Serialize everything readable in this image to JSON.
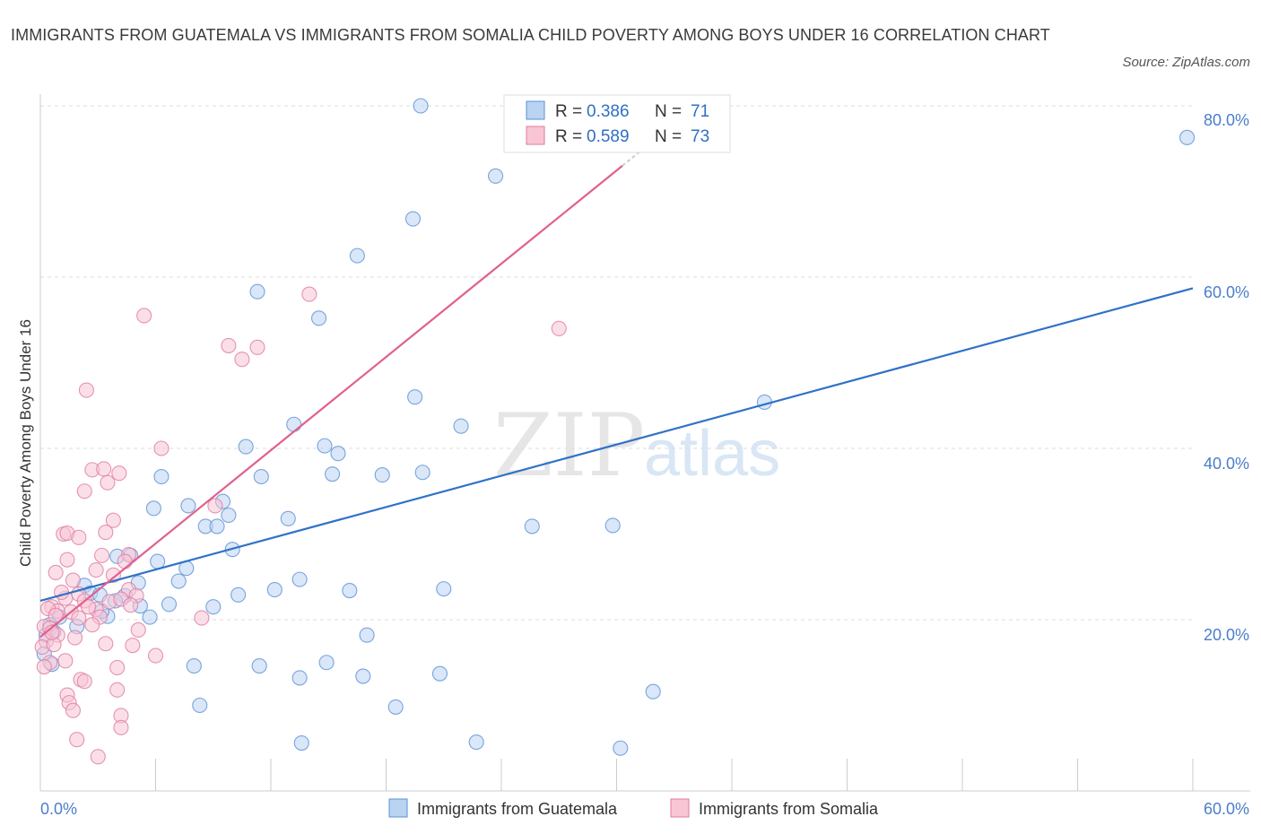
{
  "title": "IMMIGRANTS FROM GUATEMALA VS IMMIGRANTS FROM SOMALIA CHILD POVERTY AMONG BOYS UNDER 16 CORRELATION CHART",
  "source": "Source: ZipAtlas.com",
  "watermark": {
    "zip": "ZIP",
    "atlas": "atlas"
  },
  "legend_top": [
    {
      "r_label": "R =",
      "r": "0.386",
      "n_label": "N =",
      "n": "71"
    },
    {
      "r_label": "R =",
      "r": "0.589",
      "n_label": "N =",
      "n": "73"
    }
  ],
  "colors": {
    "guatemala_fill": "#b9d3f3",
    "guatemala_stroke": "#5b90d6",
    "guatemala_line": "#2f72c9",
    "somalia_fill": "#f8c5d5",
    "somalia_stroke": "#e07aa0",
    "somalia_line": "#e0608e",
    "tick_label": "#4a7ec9",
    "grid": "#dddddd"
  },
  "chart_data": {
    "type": "scatter",
    "xlabel": "",
    "ylabel": "Child Poverty Among Boys Under 16",
    "xlim": [
      0,
      60
    ],
    "ylim": [
      0,
      80
    ],
    "x_tick_labels": [
      "0.0%",
      "60.0%"
    ],
    "y_tick_labels": [
      "20.0%",
      "40.0%",
      "60.0%",
      "80.0%"
    ],
    "y_ticks": [
      20,
      40,
      60,
      80
    ],
    "x_tick_marks": [
      0,
      6,
      12,
      18,
      24,
      30,
      36,
      42,
      48,
      54,
      60
    ],
    "grid": true,
    "series": [
      {
        "name": "Immigrants from Guatemala",
        "R": 0.386,
        "N": 71,
        "trend": {
          "x": [
            0,
            60
          ],
          "y": [
            22.2,
            58.7
          ]
        },
        "points": [
          [
            19.8,
            80.0
          ],
          [
            59.7,
            76.3
          ],
          [
            23.7,
            71.8
          ],
          [
            19.4,
            66.8
          ],
          [
            16.5,
            62.5
          ],
          [
            11.3,
            58.3
          ],
          [
            14.5,
            55.2
          ],
          [
            37.7,
            45.4
          ],
          [
            19.5,
            46.0
          ],
          [
            13.2,
            42.8
          ],
          [
            21.9,
            42.6
          ],
          [
            14.8,
            40.3
          ],
          [
            10.7,
            40.2
          ],
          [
            15.5,
            39.4
          ],
          [
            6.3,
            36.7
          ],
          [
            11.5,
            36.7
          ],
          [
            15.2,
            37.0
          ],
          [
            17.8,
            36.9
          ],
          [
            19.9,
            37.2
          ],
          [
            5.9,
            33.0
          ],
          [
            7.7,
            33.3
          ],
          [
            9.5,
            33.8
          ],
          [
            9.8,
            32.2
          ],
          [
            8.6,
            30.9
          ],
          [
            9.2,
            30.9
          ],
          [
            12.9,
            31.8
          ],
          [
            25.6,
            30.9
          ],
          [
            29.8,
            31.0
          ],
          [
            10.0,
            28.2
          ],
          [
            4.7,
            27.5
          ],
          [
            4.0,
            27.4
          ],
          [
            6.1,
            26.8
          ],
          [
            7.6,
            26.0
          ],
          [
            7.2,
            24.5
          ],
          [
            5.1,
            24.3
          ],
          [
            13.5,
            24.7
          ],
          [
            16.1,
            23.4
          ],
          [
            21.0,
            23.6
          ],
          [
            12.2,
            23.5
          ],
          [
            2.3,
            24.0
          ],
          [
            2.6,
            23.1
          ],
          [
            3.1,
            22.9
          ],
          [
            4.4,
            22.8
          ],
          [
            3.9,
            22.2
          ],
          [
            9.0,
            21.5
          ],
          [
            10.3,
            22.9
          ],
          [
            6.7,
            21.8
          ],
          [
            5.2,
            21.6
          ],
          [
            5.7,
            20.3
          ],
          [
            3.5,
            20.4
          ],
          [
            1.0,
            20.3
          ],
          [
            0.5,
            19.4
          ],
          [
            1.9,
            19.2
          ],
          [
            0.7,
            18.6
          ],
          [
            0.3,
            18.2
          ],
          [
            17.0,
            18.2
          ],
          [
            8.0,
            14.6
          ],
          [
            11.4,
            14.6
          ],
          [
            14.9,
            15.0
          ],
          [
            13.5,
            13.2
          ],
          [
            16.8,
            13.4
          ],
          [
            20.8,
            13.7
          ],
          [
            31.9,
            11.6
          ],
          [
            8.3,
            10.0
          ],
          [
            18.5,
            9.8
          ],
          [
            13.6,
            5.6
          ],
          [
            22.7,
            5.7
          ],
          [
            30.2,
            5.0
          ],
          [
            0.2,
            16.0
          ],
          [
            0.6,
            14.8
          ],
          [
            3.2,
            21.0
          ]
        ]
      },
      {
        "name": "Immigrants from Somalia",
        "R": 0.589,
        "N": 73,
        "trend": {
          "x": [
            0,
            30.3
          ],
          "y": [
            18.0,
            73.0
          ]
        },
        "points": [
          [
            14.0,
            58.0
          ],
          [
            27.0,
            54.0
          ],
          [
            5.4,
            55.5
          ],
          [
            9.8,
            52.0
          ],
          [
            11.3,
            51.8
          ],
          [
            10.5,
            50.4
          ],
          [
            2.4,
            46.8
          ],
          [
            6.3,
            40.0
          ],
          [
            2.7,
            37.5
          ],
          [
            3.3,
            37.6
          ],
          [
            4.1,
            37.1
          ],
          [
            3.5,
            36.0
          ],
          [
            2.3,
            35.0
          ],
          [
            9.1,
            33.3
          ],
          [
            3.8,
            31.6
          ],
          [
            1.2,
            30.0
          ],
          [
            1.4,
            30.1
          ],
          [
            2.0,
            29.6
          ],
          [
            3.4,
            30.2
          ],
          [
            4.6,
            27.6
          ],
          [
            1.4,
            27.0
          ],
          [
            0.8,
            25.5
          ],
          [
            2.9,
            25.8
          ],
          [
            3.8,
            25.2
          ],
          [
            1.7,
            24.6
          ],
          [
            4.6,
            23.5
          ],
          [
            2.0,
            23.0
          ],
          [
            1.3,
            22.5
          ],
          [
            2.3,
            22.2
          ],
          [
            3.6,
            22.1
          ],
          [
            4.2,
            22.4
          ],
          [
            5.0,
            22.8
          ],
          [
            0.6,
            21.5
          ],
          [
            0.9,
            21.0
          ],
          [
            1.6,
            20.9
          ],
          [
            2.9,
            21.2
          ],
          [
            3.1,
            20.3
          ],
          [
            4.7,
            21.7
          ],
          [
            2.0,
            20.2
          ],
          [
            2.7,
            19.4
          ],
          [
            8.4,
            20.2
          ],
          [
            0.2,
            19.2
          ],
          [
            0.5,
            19.0
          ],
          [
            0.9,
            18.2
          ],
          [
            0.3,
            17.5
          ],
          [
            0.1,
            16.8
          ],
          [
            5.1,
            18.8
          ],
          [
            0.7,
            17.1
          ],
          [
            3.4,
            17.2
          ],
          [
            4.8,
            17.0
          ],
          [
            6.0,
            15.8
          ],
          [
            1.3,
            15.2
          ],
          [
            0.5,
            15.0
          ],
          [
            0.2,
            14.5
          ],
          [
            4.0,
            14.4
          ],
          [
            2.1,
            13.0
          ],
          [
            2.3,
            12.8
          ],
          [
            4.0,
            11.8
          ],
          [
            1.4,
            11.2
          ],
          [
            1.5,
            10.3
          ],
          [
            1.7,
            9.4
          ],
          [
            4.2,
            8.8
          ],
          [
            4.2,
            7.4
          ],
          [
            1.9,
            6.0
          ],
          [
            3.0,
            4.0
          ],
          [
            0.4,
            21.3
          ],
          [
            1.1,
            23.2
          ],
          [
            2.5,
            21.5
          ],
          [
            3.2,
            27.5
          ],
          [
            0.8,
            20.5
          ],
          [
            4.4,
            26.8
          ],
          [
            1.8,
            17.9
          ],
          [
            0.6,
            18.5
          ]
        ]
      }
    ]
  },
  "legend_bottom": [
    {
      "label": "Immigrants from Guatemala"
    },
    {
      "label": "Immigrants from Somalia"
    }
  ]
}
